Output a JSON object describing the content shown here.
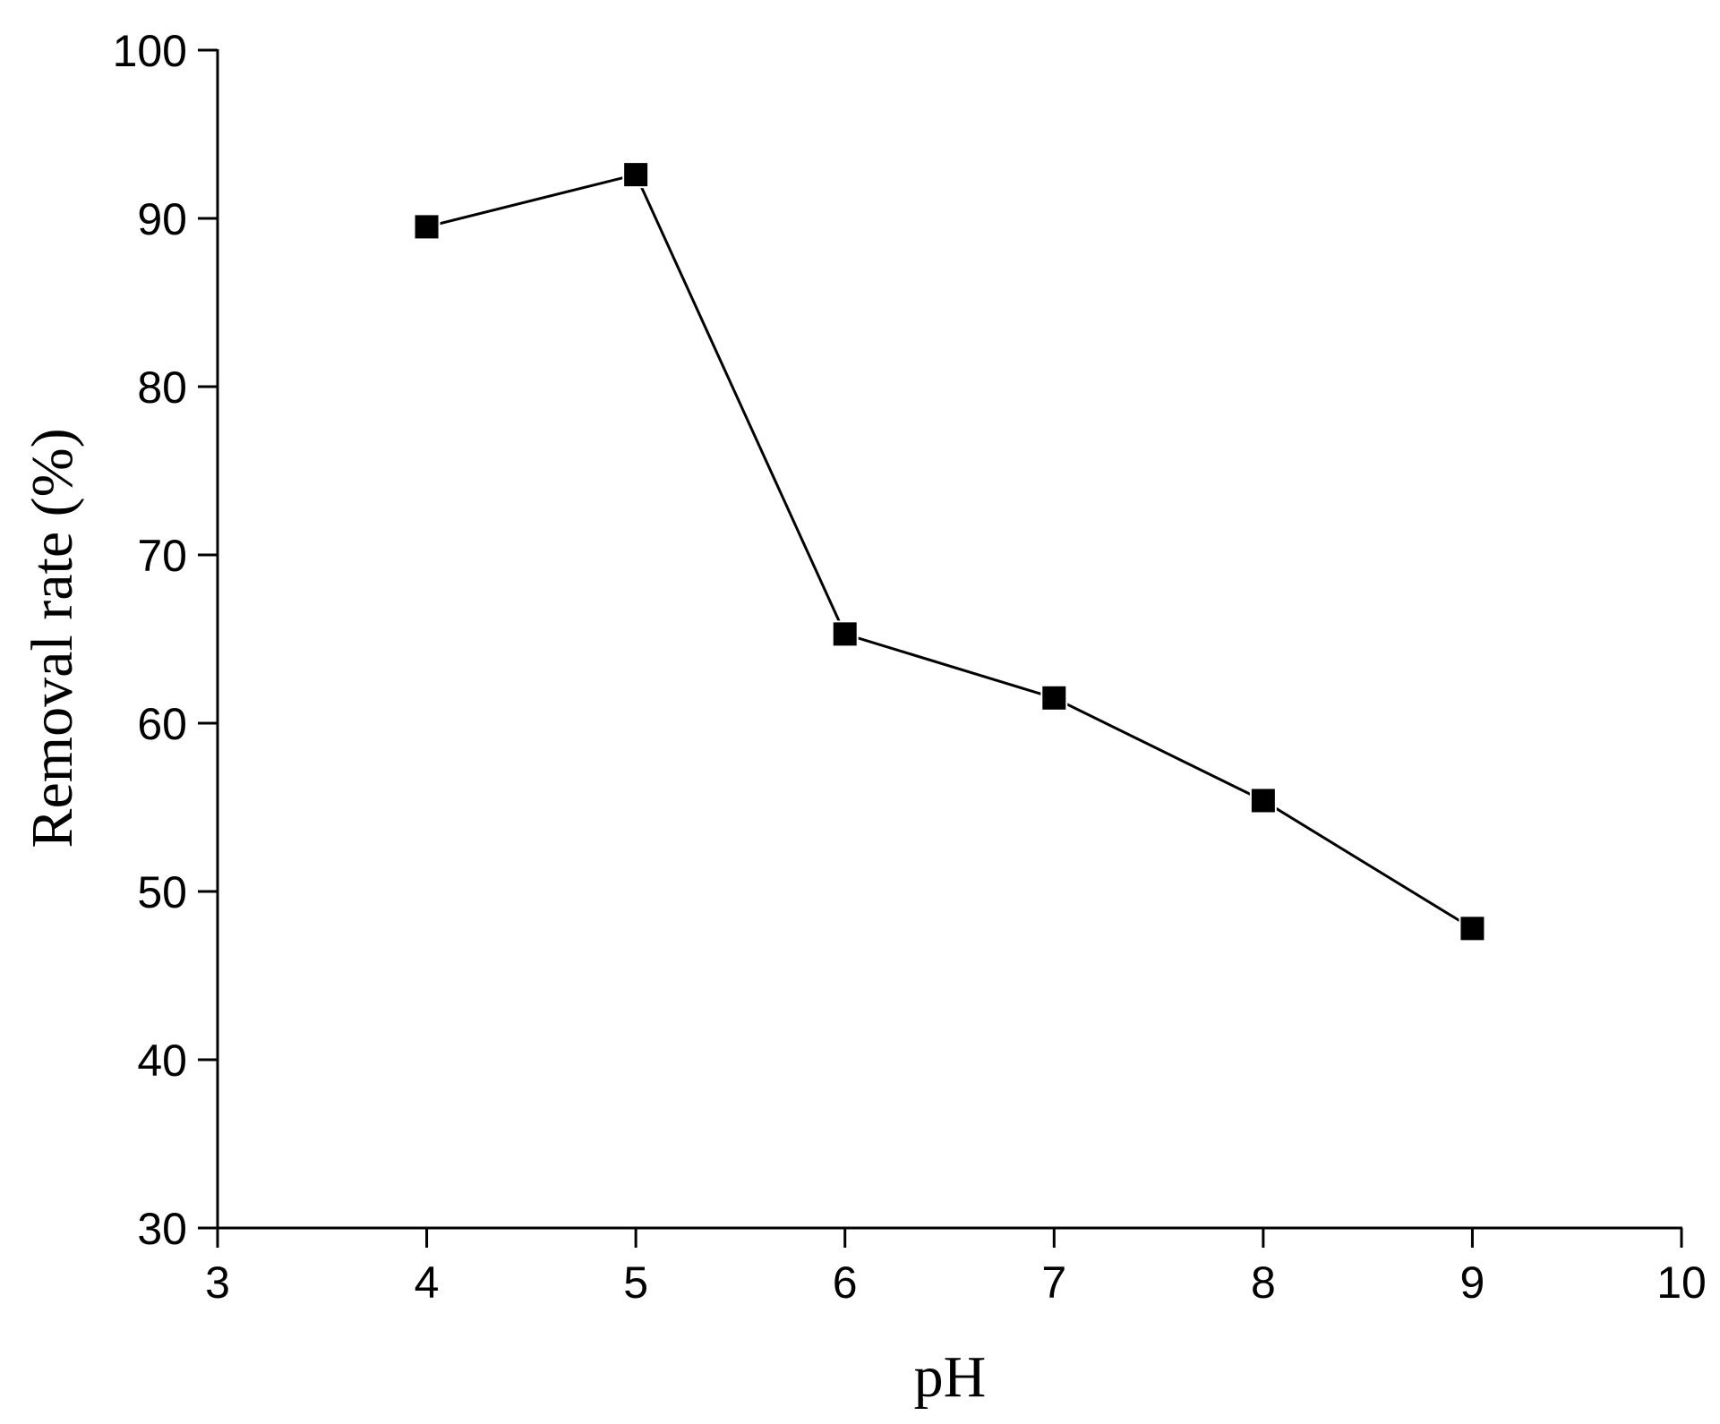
{
  "chart_data": {
    "type": "line",
    "title": "",
    "xlabel": "pH",
    "ylabel": "Removal rate (%)",
    "xlim": [
      3,
      10
    ],
    "ylim": [
      30,
      100
    ],
    "x_ticks": [
      "3",
      "4",
      "5",
      "6",
      "7",
      "8",
      "9",
      "10"
    ],
    "y_ticks": [
      "30",
      "40",
      "50",
      "60",
      "70",
      "80",
      "90",
      "100"
    ],
    "grid": false,
    "legend": "none",
    "marker": "filled-square",
    "series": [
      {
        "color": "#000000",
        "x": [
          4,
          5,
          6,
          7,
          8,
          9
        ],
        "y": [
          89.5,
          92.6,
          65.3,
          61.5,
          55.4,
          47.8
        ]
      }
    ]
  }
}
